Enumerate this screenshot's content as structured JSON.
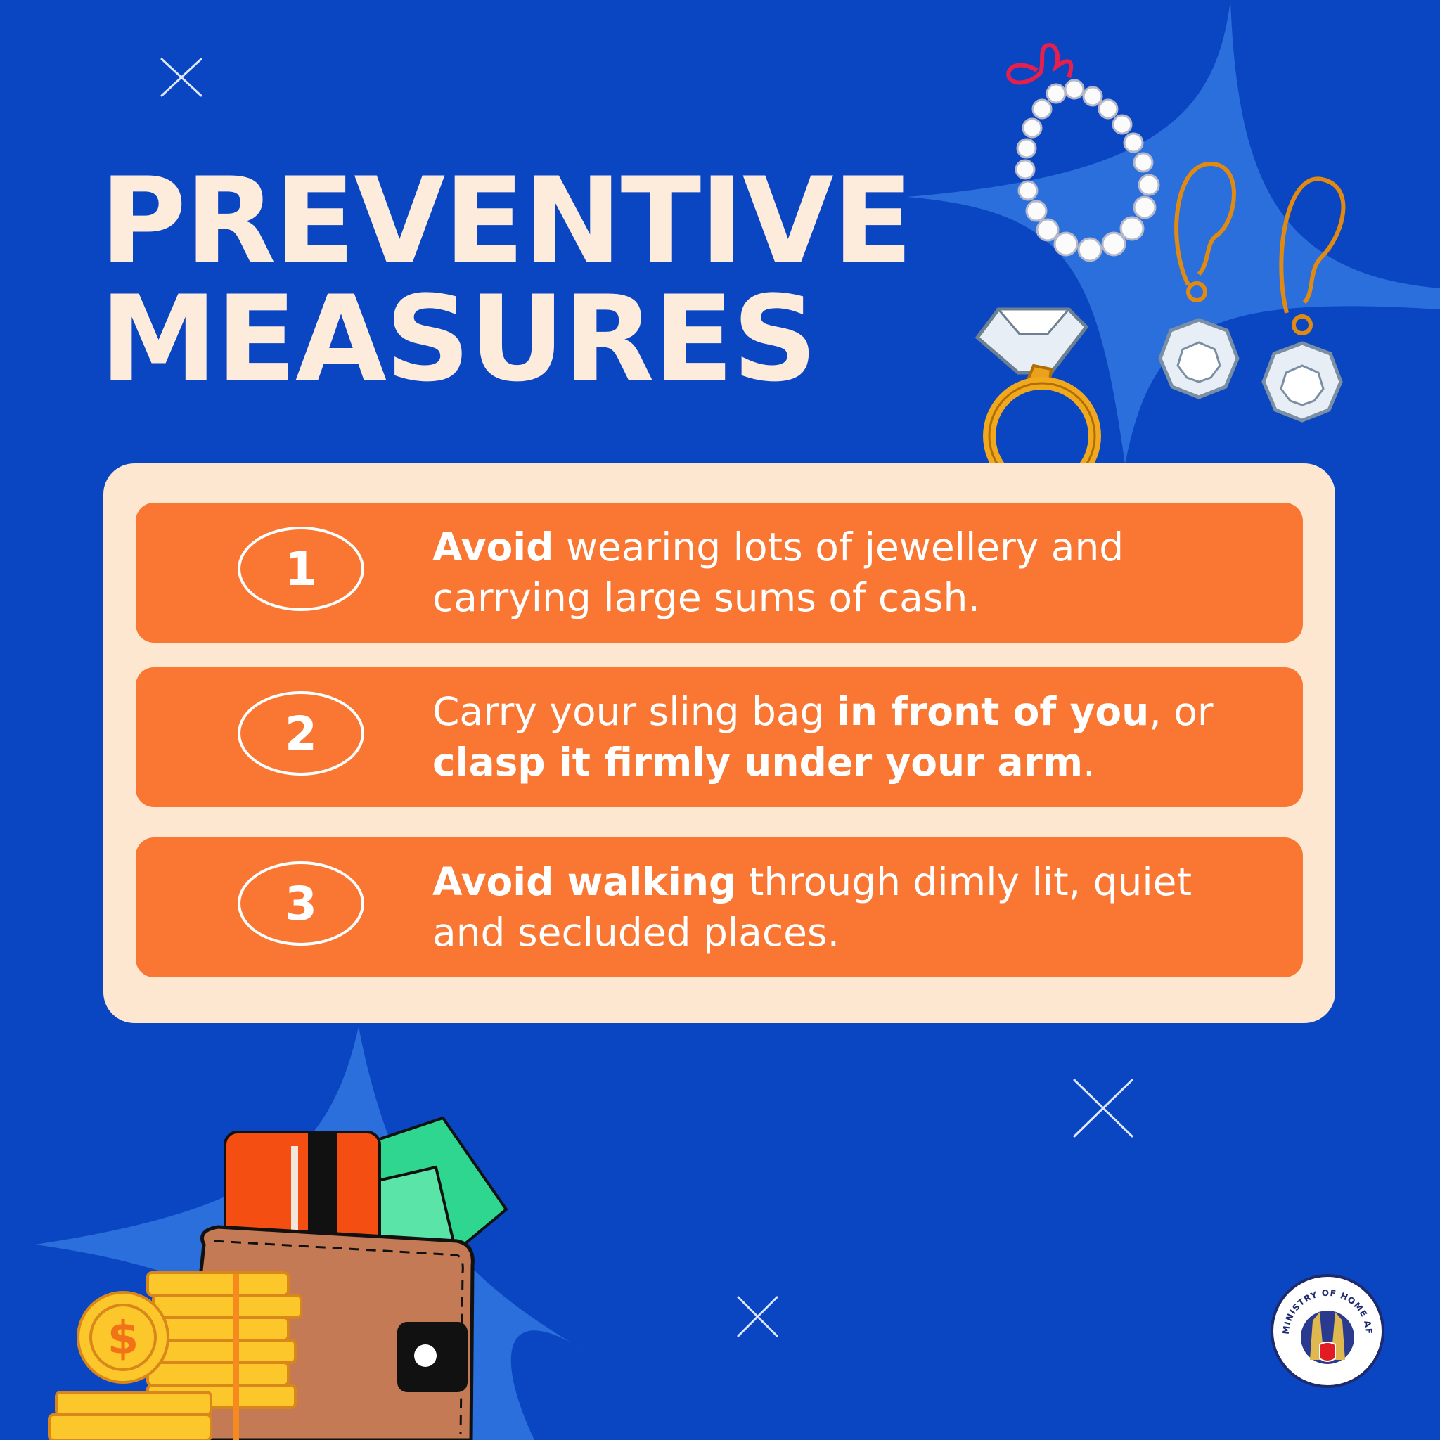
{
  "title": {
    "line1": "PREVENTIVE",
    "line2": "MEASURES"
  },
  "measures": [
    {
      "number": "1",
      "text_bold_1": "Avoid",
      "text_1": " wearing lots of jewellery and carrying large sums of cash."
    },
    {
      "number": "2",
      "text_1": "Carry your sling bag ",
      "text_bold_1": "in front of you",
      "text_2": ", or ",
      "text_bold_2": "clasp it firmly under your arm",
      "text_3": "."
    },
    {
      "number": "3",
      "text_bold_1": "Avoid walking",
      "text_1": " through dimly lit, quiet and secluded places."
    }
  ],
  "logo": {
    "text": "MINISTRY OF HOME AFFAIRS"
  },
  "colors": {
    "background": "#0a45c2",
    "accent_blue": "#2a6fdc",
    "card": "#fde7d1",
    "item": "#f97732",
    "text_light": "#fdebdc"
  },
  "icons": [
    "sparkle-icon",
    "pearl-necklace-icon",
    "diamond-ring-icon",
    "diamond-earrings-icon",
    "wallet-icon",
    "coins-icon",
    "credit-card-icon",
    "cash-icon",
    "ministry-logo-icon"
  ]
}
